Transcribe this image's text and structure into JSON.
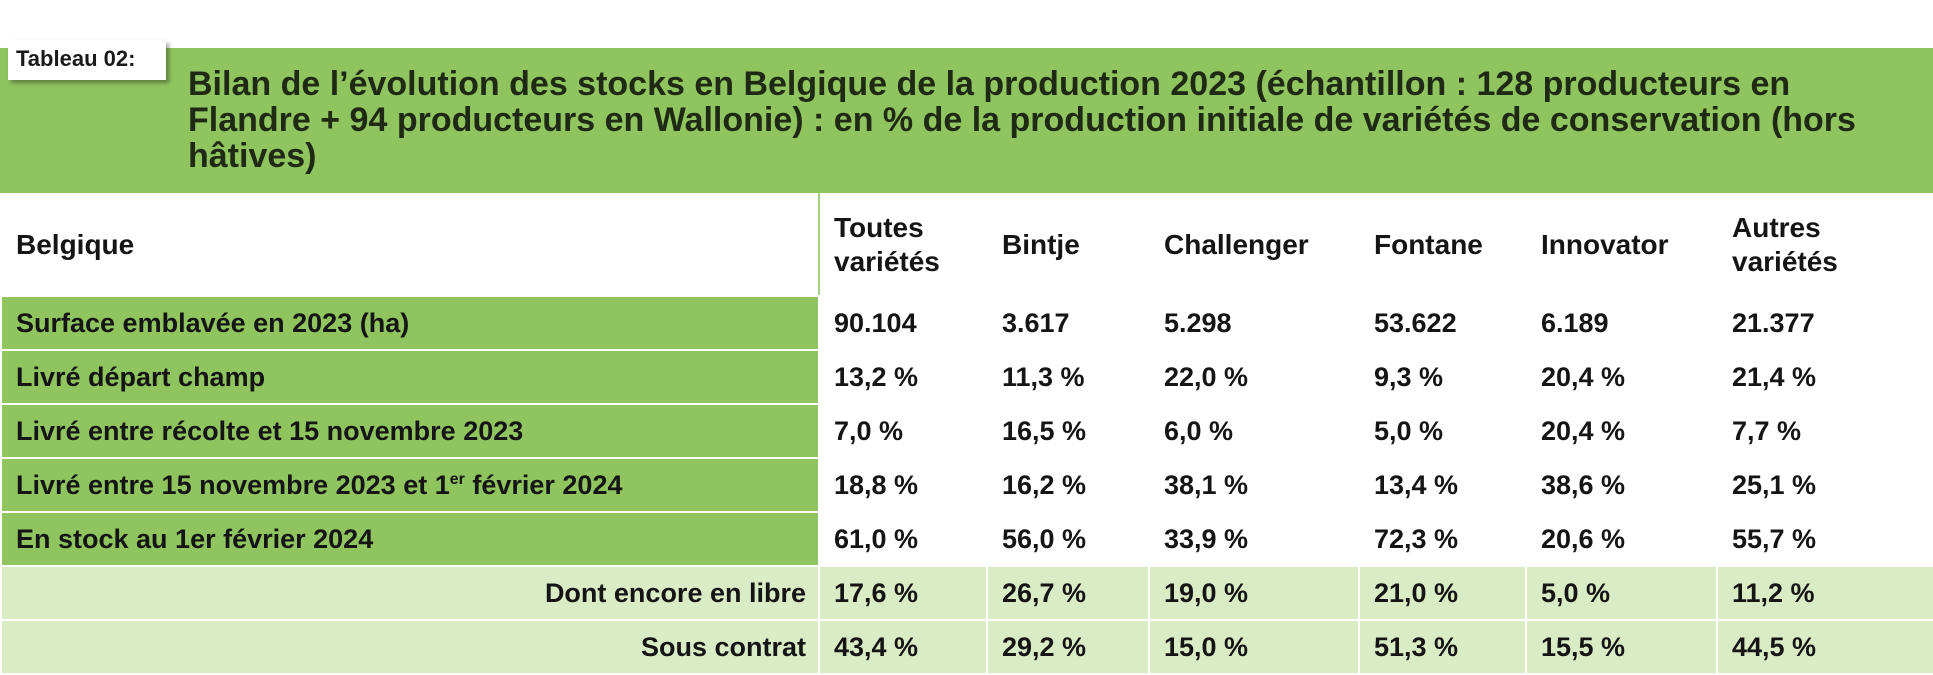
{
  "table_tag": "Tableau 02:",
  "title": "Bilan de l’évolution des stocks en Belgique de la production 2023 (échantillon : 128 producteurs en Flandre + 94 producteurs en Wallonie) : en % de la production initiale de variétés de conservation (hors hâtives)",
  "columns": [
    "Belgique",
    "Toutes variétés",
    "Bintje",
    "Challenger",
    "Fontane",
    "Innovator",
    "Autres variétés"
  ],
  "rows": [
    {
      "label": "Surface emblavée en 2023 (ha)",
      "values": [
        "90.104",
        "3.617",
        "5.298",
        "53.622",
        "6.189",
        "21.377"
      ]
    },
    {
      "label": "Livré départ champ",
      "values": [
        "13,2 %",
        "11,3 %",
        "22,0 %",
        "9,3 %",
        "20,4 %",
        "21,4 %"
      ]
    },
    {
      "label": "Livré entre récolte et 15 novembre 2023",
      "values": [
        "7,0 %",
        "16,5 %",
        "6,0 %",
        "5,0 %",
        "20,4 %",
        "7,7 %"
      ]
    },
    {
      "label_main": "Livré entre 15 novembre 2023 et 1",
      "label_sup": "er",
      "label_end": " février 2024",
      "values": [
        "18,8 %",
        "16,2 %",
        "38,1 %",
        "13,4 %",
        "38,6 %",
        "25,1 %"
      ]
    },
    {
      "label": "En stock au 1er février 2024",
      "values": [
        "61,0 %",
        "56,0 %",
        "33,9 %",
        "72,3 %",
        "20,6 %",
        "55,7 %"
      ]
    },
    {
      "label": "Dont encore en libre",
      "values": [
        "17,6 %",
        "26,7 %",
        "19,0 %",
        "21,0 %",
        "5,0 %",
        "11,2 %"
      ]
    },
    {
      "label": "Sous contrat",
      "values": [
        "43,4 %",
        "29,2 %",
        "15,0 %",
        "51,3 %",
        "15,5 %",
        "44,5 %"
      ]
    }
  ],
  "colors": {
    "header_green": "#8fc45f",
    "row_green": "#8fc45f",
    "pale_green": "#d9ecc6"
  }
}
